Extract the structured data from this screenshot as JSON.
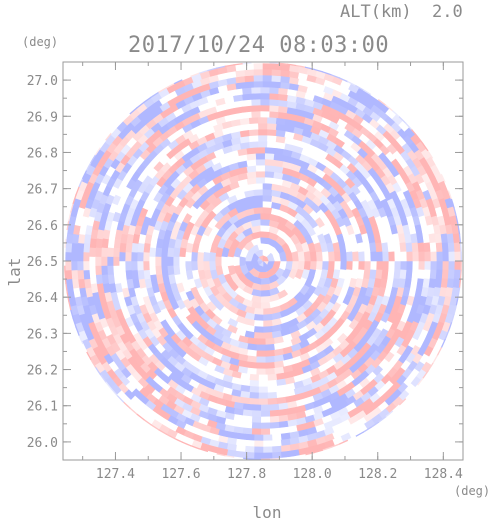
{
  "header": {
    "altitude_label": "ALT(km)",
    "altitude_value": "2.0",
    "timestamp": "2017/10/24 08:03:00"
  },
  "chart_data": {
    "type": "heatmap",
    "title": "2017/10/24 08:03:00",
    "subtitle": "ALT(km) 2.0",
    "xlabel": "lon",
    "ylabel": "lat",
    "x_unit": "(deg)",
    "y_unit": "(deg)",
    "xlim": [
      127.24,
      128.46
    ],
    "ylim": [
      25.95,
      27.05
    ],
    "x_ticks": [
      "127.4",
      "127.6",
      "127.8",
      "128.0",
      "128.2",
      "128.4"
    ],
    "y_ticks": [
      "26.0",
      "26.1",
      "26.2",
      "26.3",
      "26.4",
      "26.5",
      "26.6",
      "26.7",
      "26.8",
      "26.9",
      "27.0"
    ],
    "grid": false,
    "center": {
      "lon": 127.85,
      "lat": 26.5
    },
    "radius_deg": 0.55,
    "colormap": {
      "negative": "#b0b8ff",
      "neutral": "#ffffff",
      "positive": "#ffb5b5"
    }
  }
}
